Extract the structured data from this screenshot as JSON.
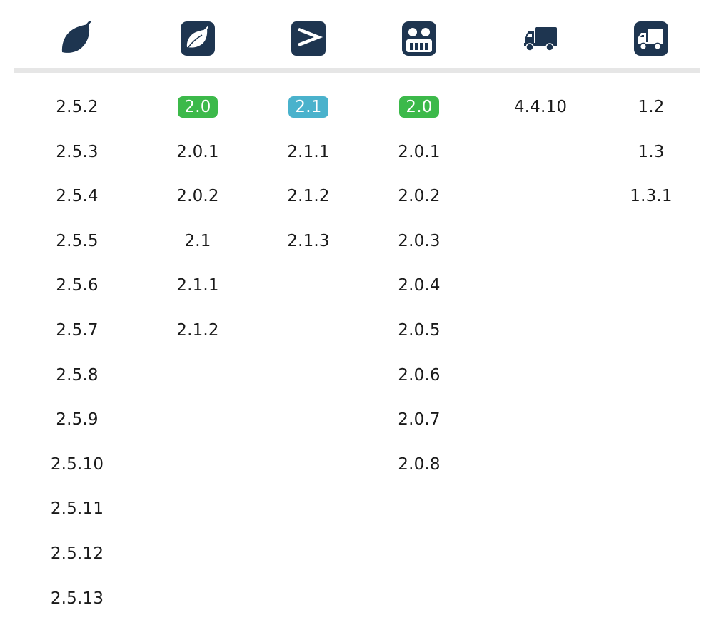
{
  "colors": {
    "icon_navy": "#1e3550",
    "divider": "#e6e6e6",
    "badge_green": "#3cb94a",
    "badge_blue": "#4ab2cc",
    "text": "#1a1a1a"
  },
  "columns": [
    {
      "icon": "leaf-icon",
      "versions": [
        {
          "label": "2.5.2"
        },
        {
          "label": "2.5.3"
        },
        {
          "label": "2.5.4"
        },
        {
          "label": "2.5.5"
        },
        {
          "label": "2.5.6"
        },
        {
          "label": "2.5.7"
        },
        {
          "label": "2.5.8"
        },
        {
          "label": "2.5.9"
        },
        {
          "label": "2.5.10"
        },
        {
          "label": "2.5.11"
        },
        {
          "label": "2.5.12"
        },
        {
          "label": "2.5.13"
        }
      ]
    },
    {
      "icon": "leaf-square-icon",
      "versions": [
        {
          "label": "2.0",
          "badge": "green"
        },
        {
          "label": "2.0.1"
        },
        {
          "label": "2.0.2"
        },
        {
          "label": "2.1"
        },
        {
          "label": "2.1.1"
        },
        {
          "label": "2.1.2"
        }
      ]
    },
    {
      "icon": "greater-than-square-icon",
      "versions": [
        {
          "label": "2.1",
          "badge": "blue"
        },
        {
          "label": "2.1.1"
        },
        {
          "label": "2.1.2"
        },
        {
          "label": "2.1.3"
        }
      ]
    },
    {
      "icon": "robot-face-square-icon",
      "versions": [
        {
          "label": "2.0",
          "badge": "green"
        },
        {
          "label": "2.0.1"
        },
        {
          "label": "2.0.2"
        },
        {
          "label": "2.0.3"
        },
        {
          "label": "2.0.4"
        },
        {
          "label": "2.0.5"
        },
        {
          "label": "2.0.6"
        },
        {
          "label": "2.0.7"
        },
        {
          "label": "2.0.8"
        }
      ]
    },
    {
      "icon": "truck-icon",
      "versions": [
        {
          "label": "4.4.10"
        }
      ]
    },
    {
      "icon": "truck-square-icon",
      "versions": [
        {
          "label": "1.2"
        },
        {
          "label": "1.3"
        },
        {
          "label": "1.3.1"
        }
      ]
    }
  ]
}
